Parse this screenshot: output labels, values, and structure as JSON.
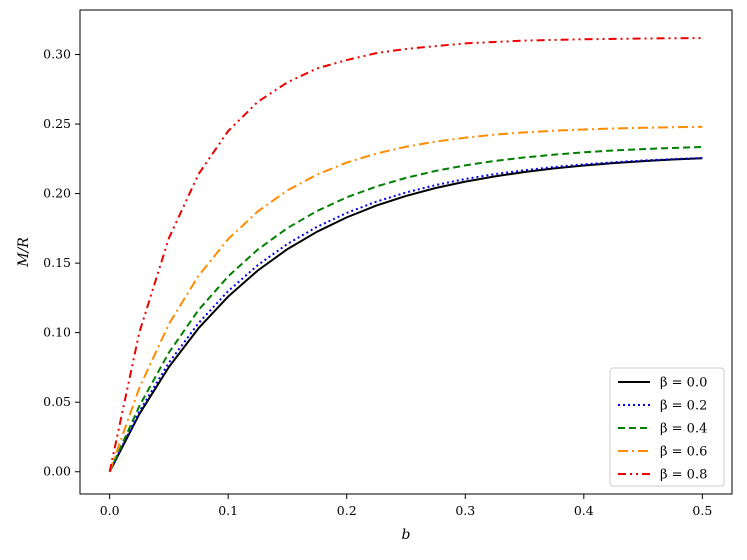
{
  "chart_data": {
    "type": "line",
    "title": "",
    "xlabel": "b",
    "ylabel": "M/R",
    "xlim": [
      -0.025,
      0.525
    ],
    "ylim": [
      -0.016,
      0.332
    ],
    "xticks": [
      0.0,
      0.1,
      0.2,
      0.3,
      0.4,
      0.5
    ],
    "xtick_labels": [
      "0.0",
      "0.1",
      "0.2",
      "0.3",
      "0.4",
      "0.5"
    ],
    "yticks": [
      0.0,
      0.05,
      0.1,
      0.15,
      0.2,
      0.25,
      0.3
    ],
    "ytick_labels": [
      "0.00",
      "0.05",
      "0.10",
      "0.15",
      "0.20",
      "0.25",
      "0.30"
    ],
    "grid": false,
    "legend_position": "lower-right",
    "x": [
      0.0,
      0.025,
      0.05,
      0.075,
      0.1,
      0.125,
      0.15,
      0.175,
      0.2,
      0.225,
      0.25,
      0.275,
      0.3,
      0.325,
      0.35,
      0.375,
      0.4,
      0.425,
      0.45,
      0.475,
      0.5
    ],
    "series": [
      {
        "name": "β = 0.0",
        "color": "#000000",
        "dash": "solid",
        "values": [
          0.0,
          0.0414,
          0.0753,
          0.1032,
          0.126,
          0.1447,
          0.1601,
          0.1726,
          0.1829,
          0.1914,
          0.1983,
          0.204,
          0.2086,
          0.2124,
          0.2155,
          0.2181,
          0.2202,
          0.2219,
          0.2233,
          0.2245,
          0.2254
        ]
      },
      {
        "name": "β = 0.2",
        "color": "#0000ee",
        "dash": "dotted",
        "values": [
          0.0,
          0.0433,
          0.0784,
          0.1069,
          0.1299,
          0.1486,
          0.1638,
          0.1761,
          0.1861,
          0.1942,
          0.2008,
          0.2061,
          0.2105,
          0.214,
          0.2168,
          0.2191,
          0.221,
          0.2225,
          0.2238,
          0.2248,
          0.2256
        ]
      },
      {
        "name": "β = 0.4",
        "color": "#008000",
        "dash": "dashed",
        "values": [
          0.0,
          0.0471,
          0.0857,
          0.1163,
          0.1405,
          0.1598,
          0.1752,
          0.1875,
          0.1973,
          0.2051,
          0.2113,
          0.2163,
          0.2203,
          0.2235,
          0.226,
          0.228,
          0.2297,
          0.231,
          0.232,
          0.2328,
          0.2335
        ]
      },
      {
        "name": "β = 0.6",
        "color": "#ff8c00",
        "dash": "dashdot",
        "values": [
          0.0,
          0.0602,
          0.1062,
          0.141,
          0.1673,
          0.1872,
          0.2023,
          0.2137,
          0.2223,
          0.2288,
          0.2337,
          0.2374,
          0.2402,
          0.2424,
          0.244,
          0.2452,
          0.2461,
          0.2468,
          0.2473,
          0.2477,
          0.248
        ]
      },
      {
        "name": "β = 0.8",
        "color": "#ee0000",
        "dash": "dashdotdot",
        "values": [
          0.0,
          0.1,
          0.168,
          0.214,
          0.245,
          0.266,
          0.28,
          0.29,
          0.296,
          0.301,
          0.304,
          0.306,
          0.308,
          0.309,
          0.31,
          0.3105,
          0.311,
          0.3112,
          0.3115,
          0.3117,
          0.3118
        ]
      }
    ]
  }
}
